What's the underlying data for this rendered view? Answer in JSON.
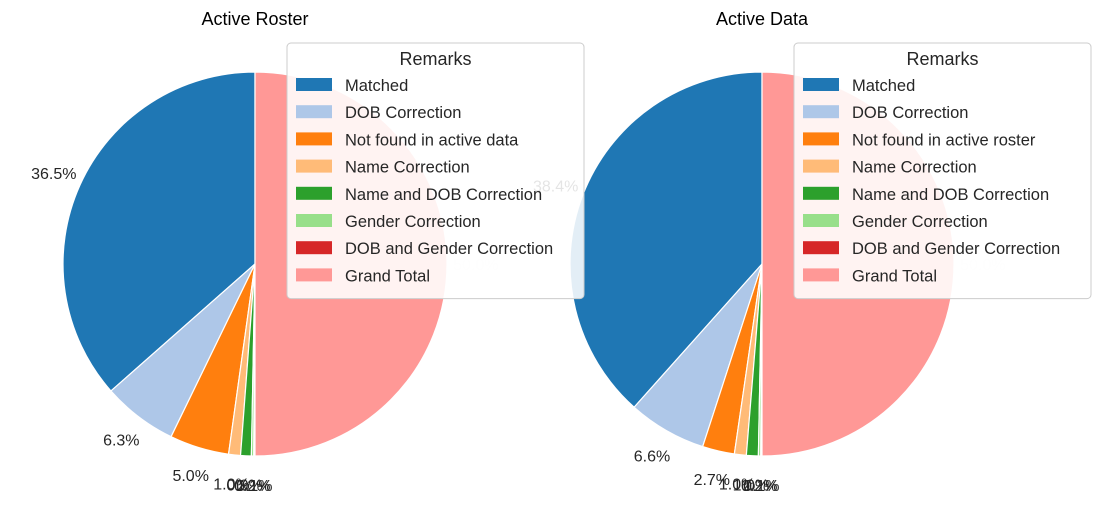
{
  "colors": {
    "Matched": "#1f77b4",
    "DOB Correction": "#aec7e8",
    "Not found": "#ff7f0e",
    "Name Correction": "#ffbb78",
    "Name and DOB Correction": "#2ca02c",
    "Gender Correction": "#98df8a",
    "DOB and Gender Correction": "#d62728",
    "Grand Total": "#ff9896"
  },
  "chart_data": [
    {
      "type": "pie",
      "title": "Active Roster",
      "legend": {
        "title": "Remarks",
        "placement": "upper-right",
        "entries": [
          "Matched",
          "DOB Correction",
          "Not found in active data",
          "Name Correction",
          "Name and DOB Correction",
          "Gender Correction",
          "DOB and Gender Correction",
          "Grand Total"
        ]
      },
      "slices": [
        {
          "name": "Matched",
          "color_key": "Matched",
          "value": 36.5,
          "label": "36.5%"
        },
        {
          "name": "DOB Correction",
          "color_key": "DOB Correction",
          "value": 6.3,
          "label": "6.3%"
        },
        {
          "name": "Not found in active data",
          "color_key": "Not found",
          "value": 5.0,
          "label": "5.0%"
        },
        {
          "name": "Name Correction",
          "color_key": "Name Correction",
          "value": 1.0,
          "label": "1.0%"
        },
        {
          "name": "Name and DOB Correction",
          "color_key": "Name and DOB Correction",
          "value": 0.9,
          "label": "0.9%"
        },
        {
          "name": "Gender Correction",
          "color_key": "Gender Correction",
          "value": 0.2,
          "label": "0.2%"
        },
        {
          "name": "DOB and Gender Correction",
          "color_key": "DOB and Gender Correction",
          "value": 0.1,
          "label": "0.1%"
        },
        {
          "name": "Grand Total",
          "color_key": "Grand Total",
          "value": 50.0,
          "label": "50.0%"
        }
      ]
    },
    {
      "type": "pie",
      "title": "Active Data",
      "legend": {
        "title": "Remarks",
        "placement": "upper-right",
        "entries": [
          "Matched",
          "DOB Correction",
          "Not found in active roster",
          "Name Correction",
          "Name and DOB Correction",
          "Gender Correction",
          "DOB and Gender Correction",
          "Grand Total"
        ]
      },
      "slices": [
        {
          "name": "Matched",
          "color_key": "Matched",
          "value": 38.4,
          "label": "38.4%"
        },
        {
          "name": "DOB Correction",
          "color_key": "DOB Correction",
          "value": 6.6,
          "label": "6.6%"
        },
        {
          "name": "Not found in active roster",
          "color_key": "Not found",
          "value": 2.7,
          "label": "2.7%"
        },
        {
          "name": "Name Correction",
          "color_key": "Name Correction",
          "value": 1.0,
          "label": "1.0%"
        },
        {
          "name": "Name and DOB Correction",
          "color_key": "Name and DOB Correction",
          "value": 1.0,
          "label": "1.0%"
        },
        {
          "name": "Gender Correction",
          "color_key": "Gender Correction",
          "value": 0.2,
          "label": "0.2%"
        },
        {
          "name": "DOB and Gender Correction",
          "color_key": "DOB and Gender Correction",
          "value": 0.1,
          "label": "0.1%"
        },
        {
          "name": "Grand Total",
          "color_key": "Grand Total",
          "value": 50.0,
          "label": "50.0%"
        }
      ]
    }
  ]
}
